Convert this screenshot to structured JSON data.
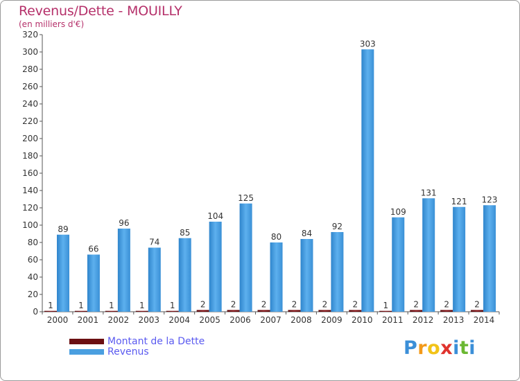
{
  "chart_data": {
    "type": "bar",
    "title": "Revenus/Dette - MOUILLY",
    "subtitle": "(en milliers d'€)",
    "categories": [
      "2000",
      "2001",
      "2002",
      "2003",
      "2004",
      "2005",
      "2006",
      "2007",
      "2008",
      "2009",
      "2010",
      "2011",
      "2012",
      "2013",
      "2014"
    ],
    "series": [
      {
        "name": "Montant de la Dette",
        "color": "#6b0f12",
        "values": [
          1,
          1,
          1,
          1,
          1,
          2,
          2,
          2,
          2,
          2,
          2,
          1,
          2,
          2,
          2
        ]
      },
      {
        "name": "Revenus",
        "color": "#4a9fe0",
        "values": [
          89,
          66,
          96,
          74,
          85,
          104,
          125,
          80,
          84,
          92,
          303,
          109,
          131,
          121,
          123
        ]
      }
    ],
    "ylim": [
      0,
      320
    ],
    "yticks": [
      0,
      20,
      40,
      60,
      80,
      100,
      120,
      140,
      160,
      180,
      200,
      220,
      240,
      260,
      280,
      300,
      320
    ],
    "grid": false,
    "legend_position": "bottom-left"
  },
  "brand": {
    "letters": [
      "P",
      "r",
      "o",
      "x",
      "i",
      "t",
      "i"
    ],
    "colors": [
      "#3b8fd8",
      "#f39a1a",
      "#f2c318",
      "#e0332d",
      "#3b8fd8",
      "#6bb832",
      "#3b8fd8"
    ]
  }
}
